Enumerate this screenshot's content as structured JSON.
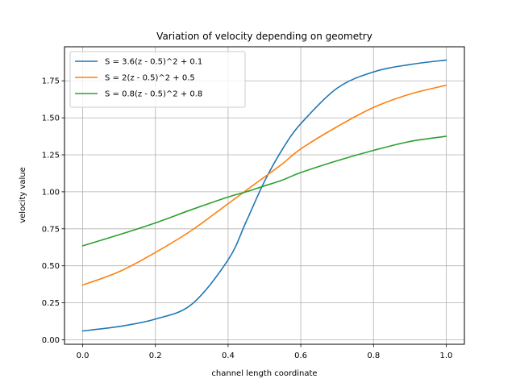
{
  "chart_data": {
    "type": "line",
    "title": "Variation of velocity depending on geometry",
    "xlabel": "channel length coordinate",
    "ylabel": "velocity value",
    "xlim": [
      -0.05,
      1.05
    ],
    "ylim": [
      -0.03,
      1.98
    ],
    "xticks": [
      0.0,
      0.2,
      0.4,
      0.6,
      0.8,
      1.0
    ],
    "xtick_labels": [
      "0.0",
      "0.2",
      "0.4",
      "0.6",
      "0.8",
      "1.0"
    ],
    "yticks": [
      0.0,
      0.25,
      0.5,
      0.75,
      1.0,
      1.25,
      1.5,
      1.75
    ],
    "ytick_labels": [
      "0.00",
      "0.25",
      "0.50",
      "0.75",
      "1.00",
      "1.25",
      "1.50",
      "1.75"
    ],
    "grid": true,
    "legend_position": "top-left",
    "x": [
      0.0,
      0.1,
      0.2,
      0.3,
      0.4,
      0.45,
      0.5,
      0.55,
      0.6,
      0.7,
      0.8,
      0.9,
      1.0
    ],
    "series": [
      {
        "name": "S = 3.6(z - 0.5)^2 + 0.1",
        "color": "#1f77b4",
        "values": [
          0.06,
          0.09,
          0.14,
          0.24,
          0.54,
          0.8,
          1.07,
          1.29,
          1.46,
          1.7,
          1.81,
          1.86,
          1.89
        ]
      },
      {
        "name": "S = 2(z - 0.5)^2 + 0.5",
        "color": "#ff7f0e",
        "values": [
          0.37,
          0.46,
          0.59,
          0.74,
          0.92,
          1.01,
          1.1,
          1.19,
          1.29,
          1.44,
          1.57,
          1.66,
          1.72
        ]
      },
      {
        "name": "S = 0.8(z - 0.5)^2 + 0.8",
        "color": "#2ca02c",
        "values": [
          0.635,
          0.71,
          0.79,
          0.88,
          0.965,
          1.0,
          1.04,
          1.08,
          1.13,
          1.21,
          1.28,
          1.34,
          1.375
        ]
      }
    ]
  }
}
